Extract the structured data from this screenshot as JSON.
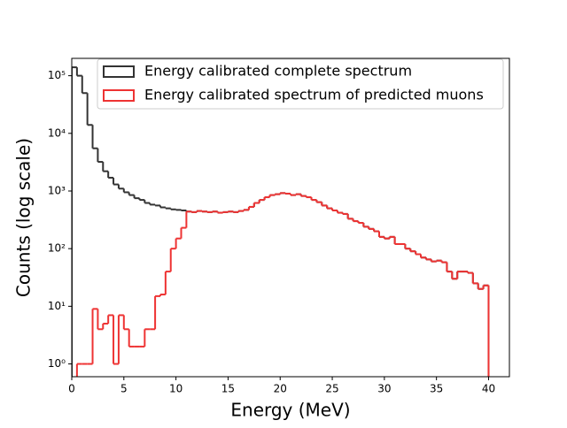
{
  "chart_data": {
    "type": "histogram",
    "xlabel": "Energy (MeV)",
    "ylabel": "Counts (log scale)",
    "log_y": true,
    "legend": "upper right",
    "bins": [
      0,
      0.5,
      1,
      1.5,
      2,
      2.5,
      3,
      3.5,
      4,
      4.5,
      5,
      5.5,
      6,
      6.5,
      7,
      7.5,
      8,
      8.5,
      9,
      9.5,
      10,
      10.5,
      11,
      11.5,
      12,
      12.5,
      13,
      13.5,
      14,
      14.5,
      15,
      15.5,
      16,
      16.5,
      17,
      17.5,
      18,
      18.5,
      19,
      19.5,
      20,
      20.5,
      21,
      21.5,
      22,
      22.5,
      23,
      23.5,
      24,
      24.5,
      25,
      25.5,
      26,
      26.5,
      27,
      27.5,
      28,
      28.5,
      29,
      29.5,
      30,
      30.5,
      31,
      31.5,
      32,
      32.5,
      33,
      33.5,
      34,
      34.5,
      35,
      35.5,
      36,
      36.5,
      37,
      37.5,
      38,
      38.5,
      39,
      39.5,
      40
    ],
    "series": [
      {
        "name": "Energy calibrated complete spectrum",
        "color": "#333333",
        "values": [
          140000,
          100000,
          50000,
          14000,
          5500,
          3200,
          2200,
          1700,
          1300,
          1100,
          950,
          850,
          750,
          700,
          620,
          580,
          560,
          520,
          500,
          480,
          470,
          460,
          440,
          430,
          450,
          440,
          430,
          440,
          420,
          430,
          440,
          430,
          450,
          470,
          530,
          620,
          700,
          780,
          850,
          880,
          920,
          900,
          850,
          880,
          820,
          780,
          700,
          640,
          560,
          500,
          460,
          420,
          400,
          330,
          300,
          280,
          240,
          220,
          200,
          160,
          150,
          160,
          120,
          120,
          100,
          90,
          80,
          70,
          65,
          60,
          62,
          58,
          40,
          30,
          40,
          40,
          38,
          25,
          20,
          23
        ]
      },
      {
        "name": "Energy calibrated spectrum of predicted muons",
        "color": "#ee3333",
        "values": [
          0,
          1,
          1,
          1,
          9,
          4,
          5,
          7,
          1,
          7,
          4,
          2,
          2,
          2,
          4,
          4,
          15,
          16,
          40,
          100,
          150,
          230,
          440,
          430,
          450,
          440,
          430,
          440,
          420,
          430,
          440,
          430,
          450,
          470,
          530,
          620,
          700,
          780,
          850,
          880,
          920,
          900,
          850,
          880,
          820,
          780,
          700,
          640,
          560,
          500,
          460,
          420,
          400,
          330,
          300,
          280,
          240,
          220,
          200,
          160,
          150,
          160,
          120,
          120,
          100,
          90,
          80,
          70,
          65,
          60,
          62,
          58,
          40,
          30,
          40,
          40,
          38,
          25,
          20,
          23
        ]
      }
    ],
    "xlim": [
      0,
      42
    ],
    "xticks": [
      0,
      5,
      10,
      15,
      20,
      25,
      30,
      35,
      40
    ],
    "ylim": [
      0.6,
      200000
    ],
    "yticks": [
      {
        "value": 1,
        "label": "10⁰"
      },
      {
        "value": 10,
        "label": "10¹"
      },
      {
        "value": 100,
        "label": "10²"
      },
      {
        "value": 1000,
        "label": "10³"
      },
      {
        "value": 10000,
        "label": "10⁴"
      },
      {
        "value": 100000,
        "label": "10⁵"
      }
    ]
  }
}
